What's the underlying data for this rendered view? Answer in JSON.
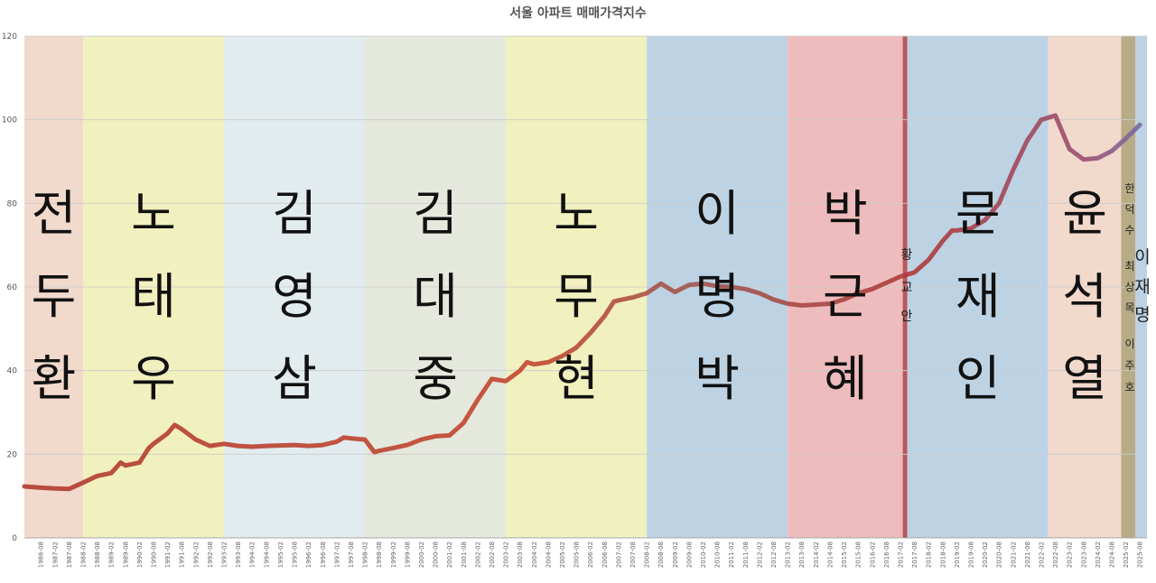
{
  "chart_data": {
    "type": "line",
    "title": "서울 아파트 매매가격지수",
    "xlabel": "",
    "ylabel": "",
    "ylim": [
      0,
      120
    ],
    "y_ticks": [
      "0",
      "20",
      "40",
      "60",
      "80",
      "100",
      "120"
    ],
    "grid": "horizontal",
    "x_ticks": [
      "1986-08",
      "1987-02",
      "1987-08",
      "1988-02",
      "1988-08",
      "1989-02",
      "1989-08",
      "1990-02",
      "1990-08",
      "1991-02",
      "1991-08",
      "1992-02",
      "1992-08",
      "1993-02",
      "1993-08",
      "1994-02",
      "1994-08",
      "1995-02",
      "1995-08",
      "1996-02",
      "1996-08",
      "1997-02",
      "1997-08",
      "1998-02",
      "1998-08",
      "1999-02",
      "1999-08",
      "2000-02",
      "2000-08",
      "2001-02",
      "2001-08",
      "2002-02",
      "2002-08",
      "2003-02",
      "2003-08",
      "2004-02",
      "2004-08",
      "2005-02",
      "2005-08",
      "2006-02",
      "2006-08",
      "2007-02",
      "2007-08",
      "2008-02",
      "2008-08",
      "2009-02",
      "2009-08",
      "2010-02",
      "2010-08",
      "2011-02",
      "2011-08",
      "2012-02",
      "2012-08",
      "2013-02",
      "2013-08",
      "2014-02",
      "2014-08",
      "2015-02",
      "2015-08",
      "2016-02",
      "2016-08",
      "2017-02",
      "2017-08",
      "2018-02",
      "2018-08",
      "2019-02",
      "2019-08",
      "2020-02",
      "2020-08",
      "2021-02",
      "2021-08",
      "2022-02",
      "2022-08",
      "2023-02",
      "2023-08",
      "2024-02",
      "2024-08",
      "2025-02",
      "2025-08"
    ],
    "series": [
      {
        "color": "#b03a2e",
        "points": [
          [
            "1986-01",
            12.3
          ],
          [
            "1986-08",
            12.0
          ],
          [
            "1987-02",
            11.8
          ],
          [
            "1987-08",
            11.7
          ],
          [
            "1988-02",
            13.2
          ],
          [
            "1988-08",
            14.8
          ],
          [
            "1989-02",
            15.5
          ],
          [
            "1989-06",
            18.0
          ],
          [
            "1989-08",
            17.3
          ],
          [
            "1990-02",
            18.0
          ],
          [
            "1990-06",
            21.5
          ],
          [
            "1990-08",
            22.5
          ],
          [
            "1991-02",
            25.0
          ],
          [
            "1991-05",
            27.0
          ],
          [
            "1991-08",
            26.0
          ],
          [
            "1992-02",
            23.5
          ],
          [
            "1992-08",
            22.0
          ],
          [
            "1993-02",
            22.5
          ],
          [
            "1993-08",
            22.0
          ],
          [
            "1994-02",
            21.8
          ],
          [
            "1994-08",
            22.0
          ],
          [
            "1995-02",
            22.1
          ],
          [
            "1995-08",
            22.2
          ],
          [
            "1996-02",
            22.0
          ],
          [
            "1996-08",
            22.2
          ],
          [
            "1997-02",
            23.0
          ],
          [
            "1997-05",
            24.0
          ],
          [
            "1997-08",
            23.8
          ],
          [
            "1998-02",
            23.5
          ],
          [
            "1998-06",
            20.5
          ],
          [
            "1998-08",
            20.8
          ],
          [
            "1999-02",
            21.5
          ],
          [
            "1999-08",
            22.2
          ],
          [
            "2000-02",
            23.5
          ],
          [
            "2000-08",
            24.3
          ],
          [
            "2001-02",
            24.5
          ],
          [
            "2001-08",
            27.5
          ],
          [
            "2002-02",
            33.0
          ],
          [
            "2002-08",
            38.0
          ],
          [
            "2003-02",
            37.5
          ],
          [
            "2003-08",
            40.0
          ],
          [
            "2003-11",
            42.0
          ],
          [
            "2004-02",
            41.5
          ],
          [
            "2004-08",
            42.0
          ],
          [
            "2005-02",
            43.5
          ],
          [
            "2005-08",
            45.5
          ],
          [
            "2006-02",
            49.0
          ],
          [
            "2006-08",
            53.0
          ],
          [
            "2006-12",
            56.5
          ],
          [
            "2007-02",
            56.8
          ],
          [
            "2007-08",
            57.5
          ],
          [
            "2008-02",
            58.5
          ],
          [
            "2008-08",
            60.8
          ],
          [
            "2009-02",
            58.8
          ],
          [
            "2009-08",
            60.5
          ],
          [
            "2010-02",
            60.8
          ],
          [
            "2010-08",
            60.2
          ],
          [
            "2011-02",
            60.0
          ],
          [
            "2011-08",
            59.5
          ],
          [
            "2012-02",
            58.5
          ],
          [
            "2012-08",
            57.0
          ],
          [
            "2013-02",
            56.0
          ],
          [
            "2013-08",
            55.6
          ],
          [
            "2014-02",
            55.8
          ],
          [
            "2014-08",
            56.0
          ],
          [
            "2015-02",
            57.0
          ],
          [
            "2015-08",
            58.5
          ],
          [
            "2016-02",
            59.5
          ],
          [
            "2016-08",
            61.0
          ],
          [
            "2017-02",
            62.5
          ],
          [
            "2017-08",
            63.5
          ],
          [
            "2018-02",
            66.5
          ],
          [
            "2018-08",
            71.0
          ],
          [
            "2018-12",
            73.5
          ],
          [
            "2019-02",
            73.5
          ],
          [
            "2019-08",
            74.0
          ],
          [
            "2020-02",
            76.0
          ],
          [
            "2020-08",
            80.0
          ],
          [
            "2021-02",
            88.0
          ],
          [
            "2021-08",
            95.0
          ],
          [
            "2022-02",
            100.0
          ],
          [
            "2022-08",
            101.0
          ],
          [
            "2023-02",
            93.0
          ],
          [
            "2023-08",
            90.5
          ],
          [
            "2024-02",
            90.8
          ],
          [
            "2024-08",
            92.5
          ],
          [
            "2025-02",
            95.5
          ],
          [
            "2025-08",
            98.8
          ]
        ]
      }
    ],
    "presidents": [
      {
        "name": "전두환",
        "chars": [
          "전",
          "두",
          "환"
        ],
        "start": "1986-01",
        "end": "1988-02",
        "color": "#f1d9cc"
      },
      {
        "name": "노태우",
        "chars": [
          "노",
          "태",
          "우"
        ],
        "start": "1988-02",
        "end": "1993-02",
        "color": "#f1f0bf"
      },
      {
        "name": "김영삼",
        "chars": [
          "김",
          "영",
          "삼"
        ],
        "start": "1993-02",
        "end": "1998-02",
        "color": "#e2ebee"
      },
      {
        "name": "김대중",
        "chars": [
          "김",
          "대",
          "중"
        ],
        "start": "1998-02",
        "end": "2003-02",
        "color": "#e5e8dd"
      },
      {
        "name": "노무현",
        "chars": [
          "노",
          "무",
          "현"
        ],
        "start": "2003-02",
        "end": "2008-02",
        "color": "#f1f0bf"
      },
      {
        "name": "이명박",
        "chars": [
          "이",
          "명",
          "박"
        ],
        "start": "2008-02",
        "end": "2013-02",
        "color": "#bdd3e4"
      },
      {
        "name": "박근혜",
        "chars": [
          "박",
          "근",
          "혜"
        ],
        "start": "2013-02",
        "end": "2017-03",
        "color": "#efbcbd"
      },
      {
        "name": "황교안",
        "chars": [
          "황",
          "교",
          "안"
        ],
        "start": "2017-03",
        "end": "2017-05",
        "color": "#b85a5a"
      },
      {
        "name": "문재인",
        "chars": [
          "문",
          "재",
          "인"
        ],
        "start": "2017-05",
        "end": "2022-05",
        "color": "#bdd3e4"
      },
      {
        "name": "윤석열",
        "chars": [
          "윤",
          "석",
          "열"
        ],
        "start": "2022-05",
        "end": "2024-12",
        "color": "#f1d9cc"
      },
      {
        "name": "한덕수 최상목 이주호",
        "chars": [
          "한",
          "덕",
          "수",
          "최",
          "상",
          "목",
          "이",
          "주",
          "호"
        ],
        "start": "2024-12",
        "end": "2025-06",
        "color": "#b8ab85"
      },
      {
        "name": "이재명",
        "chars": [
          "이",
          "재",
          "명"
        ],
        "start": "2025-06",
        "end": "2025-11",
        "color": "#bdd3e4"
      }
    ]
  }
}
